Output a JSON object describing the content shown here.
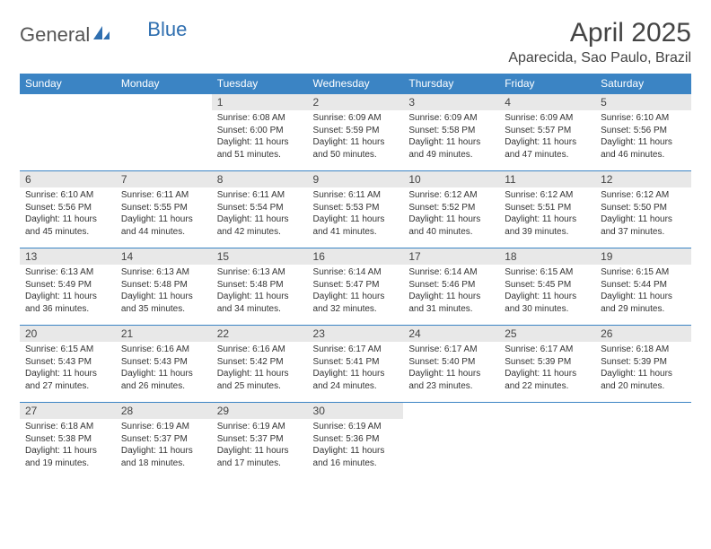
{
  "logo": {
    "text1": "General",
    "text2": "Blue"
  },
  "colors": {
    "header_bg": "#3b84c4",
    "header_text": "#ffffff",
    "daynum_bg": "#e8e8e8",
    "border": "#3b84c4",
    "logo_gray": "#555555",
    "logo_blue": "#2f6fb0"
  },
  "title": "April 2025",
  "location": "Aparecida, Sao Paulo, Brazil",
  "weekdays": [
    "Sunday",
    "Monday",
    "Tuesday",
    "Wednesday",
    "Thursday",
    "Friday",
    "Saturday"
  ],
  "layout": {
    "first_weekday_index": 2,
    "days_in_month": 30
  },
  "days": {
    "1": {
      "sunrise": "6:08 AM",
      "sunset": "6:00 PM",
      "daylight": "11 hours and 51 minutes."
    },
    "2": {
      "sunrise": "6:09 AM",
      "sunset": "5:59 PM",
      "daylight": "11 hours and 50 minutes."
    },
    "3": {
      "sunrise": "6:09 AM",
      "sunset": "5:58 PM",
      "daylight": "11 hours and 49 minutes."
    },
    "4": {
      "sunrise": "6:09 AM",
      "sunset": "5:57 PM",
      "daylight": "11 hours and 47 minutes."
    },
    "5": {
      "sunrise": "6:10 AM",
      "sunset": "5:56 PM",
      "daylight": "11 hours and 46 minutes."
    },
    "6": {
      "sunrise": "6:10 AM",
      "sunset": "5:56 PM",
      "daylight": "11 hours and 45 minutes."
    },
    "7": {
      "sunrise": "6:11 AM",
      "sunset": "5:55 PM",
      "daylight": "11 hours and 44 minutes."
    },
    "8": {
      "sunrise": "6:11 AM",
      "sunset": "5:54 PM",
      "daylight": "11 hours and 42 minutes."
    },
    "9": {
      "sunrise": "6:11 AM",
      "sunset": "5:53 PM",
      "daylight": "11 hours and 41 minutes."
    },
    "10": {
      "sunrise": "6:12 AM",
      "sunset": "5:52 PM",
      "daylight": "11 hours and 40 minutes."
    },
    "11": {
      "sunrise": "6:12 AM",
      "sunset": "5:51 PM",
      "daylight": "11 hours and 39 minutes."
    },
    "12": {
      "sunrise": "6:12 AM",
      "sunset": "5:50 PM",
      "daylight": "11 hours and 37 minutes."
    },
    "13": {
      "sunrise": "6:13 AM",
      "sunset": "5:49 PM",
      "daylight": "11 hours and 36 minutes."
    },
    "14": {
      "sunrise": "6:13 AM",
      "sunset": "5:48 PM",
      "daylight": "11 hours and 35 minutes."
    },
    "15": {
      "sunrise": "6:13 AM",
      "sunset": "5:48 PM",
      "daylight": "11 hours and 34 minutes."
    },
    "16": {
      "sunrise": "6:14 AM",
      "sunset": "5:47 PM",
      "daylight": "11 hours and 32 minutes."
    },
    "17": {
      "sunrise": "6:14 AM",
      "sunset": "5:46 PM",
      "daylight": "11 hours and 31 minutes."
    },
    "18": {
      "sunrise": "6:15 AM",
      "sunset": "5:45 PM",
      "daylight": "11 hours and 30 minutes."
    },
    "19": {
      "sunrise": "6:15 AM",
      "sunset": "5:44 PM",
      "daylight": "11 hours and 29 minutes."
    },
    "20": {
      "sunrise": "6:15 AM",
      "sunset": "5:43 PM",
      "daylight": "11 hours and 27 minutes."
    },
    "21": {
      "sunrise": "6:16 AM",
      "sunset": "5:43 PM",
      "daylight": "11 hours and 26 minutes."
    },
    "22": {
      "sunrise": "6:16 AM",
      "sunset": "5:42 PM",
      "daylight": "11 hours and 25 minutes."
    },
    "23": {
      "sunrise": "6:17 AM",
      "sunset": "5:41 PM",
      "daylight": "11 hours and 24 minutes."
    },
    "24": {
      "sunrise": "6:17 AM",
      "sunset": "5:40 PM",
      "daylight": "11 hours and 23 minutes."
    },
    "25": {
      "sunrise": "6:17 AM",
      "sunset": "5:39 PM",
      "daylight": "11 hours and 22 minutes."
    },
    "26": {
      "sunrise": "6:18 AM",
      "sunset": "5:39 PM",
      "daylight": "11 hours and 20 minutes."
    },
    "27": {
      "sunrise": "6:18 AM",
      "sunset": "5:38 PM",
      "daylight": "11 hours and 19 minutes."
    },
    "28": {
      "sunrise": "6:19 AM",
      "sunset": "5:37 PM",
      "daylight": "11 hours and 18 minutes."
    },
    "29": {
      "sunrise": "6:19 AM",
      "sunset": "5:37 PM",
      "daylight": "11 hours and 17 minutes."
    },
    "30": {
      "sunrise": "6:19 AM",
      "sunset": "5:36 PM",
      "daylight": "11 hours and 16 minutes."
    }
  },
  "labels": {
    "sunrise": "Sunrise:",
    "sunset": "Sunset:",
    "daylight": "Daylight:"
  }
}
